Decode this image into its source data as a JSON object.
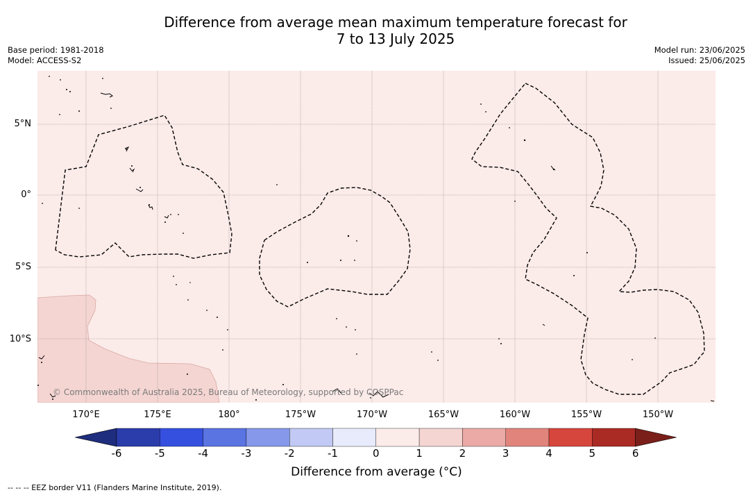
{
  "title": {
    "line1": "Difference from average mean maximum temperature forecast for",
    "line2": "7 to 13 July 2025"
  },
  "meta_left": {
    "base_period": "Base period: 1981-2018",
    "model": "Model: ACCESS-S2"
  },
  "meta_right": {
    "model_run": "Model run: 23/06/2025",
    "issued": "Issued: 25/06/2025"
  },
  "map": {
    "copyright": "© Commonwealth of Australia 2025, Bureau of Meteorology, supported by COSPPac",
    "background_anomaly": "0 to 1",
    "lat_labels": [
      "5°N",
      "0°",
      "5°S",
      "10°S"
    ],
    "lon_labels": [
      "170°E",
      "175°E",
      "180°",
      "175°W",
      "170°W",
      "165°W",
      "160°W",
      "155°W",
      "150°W"
    ]
  },
  "colorbar": {
    "title": "Difference from average (°C)",
    "ticks": [
      "-6",
      "-5",
      "-4",
      "-3",
      "-2",
      "-1",
      "0",
      "1",
      "2",
      "3",
      "4",
      "5",
      "6"
    ],
    "colors": [
      "#1f2d7e",
      "#2b3cab",
      "#3550df",
      "#5a74e2",
      "#8598e9",
      "#c1c9f4",
      "#e8ebfb",
      "#fbebe9",
      "#f4d5d2",
      "#ebaaa5",
      "#e1847c",
      "#d6463c",
      "#aa2a24",
      "#7a1f1a"
    ]
  },
  "footnote": "--  --  -- EEZ border V11 (Flanders Marine Institute, 2019)."
}
